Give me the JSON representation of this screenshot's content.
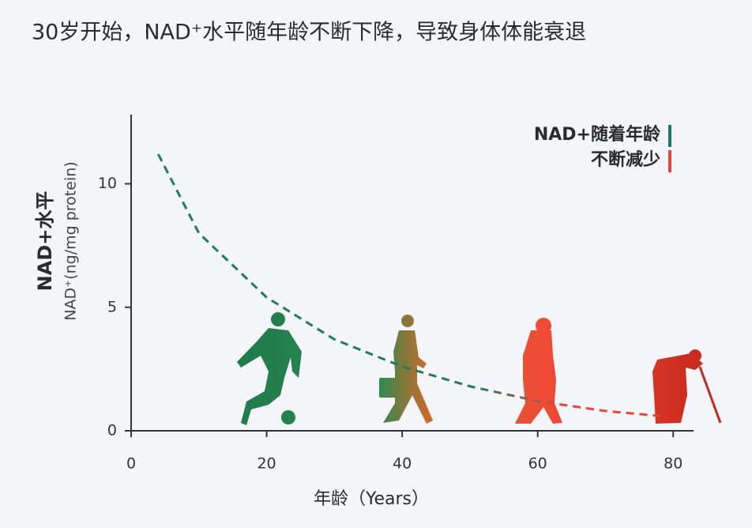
{
  "chart_data": {
    "type": "line",
    "title": "30岁开始，NAD⁺水平随年龄不断下降，导致身体体能衰退",
    "x_label": "年龄（Years）",
    "y_label": "NAD+水平",
    "y_sublabel": "NAD⁺(ng/mg protein)",
    "legend_lines": [
      "NAD+随着年龄",
      "不断减少"
    ],
    "x": [
      4,
      10,
      20,
      30,
      40,
      50,
      60,
      70,
      78
    ],
    "series": [
      {
        "color": "#1e7b5c",
        "color_end": "#e8453a",
        "values": [
          11.2,
          8.0,
          5.4,
          3.7,
          2.6,
          1.8,
          1.2,
          0.8,
          0.6
        ]
      }
    ],
    "xlim": [
      0,
      83
    ],
    "ylim": [
      0,
      12.8
    ],
    "xticks": [
      0,
      20,
      40,
      60,
      80
    ],
    "yticks": [
      0,
      5,
      10
    ]
  }
}
